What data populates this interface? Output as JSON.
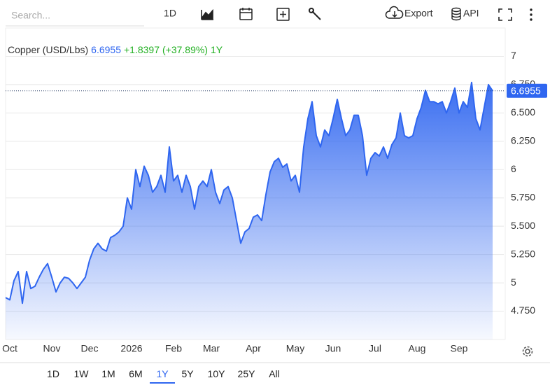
{
  "toolbar": {
    "search_placeholder": "Search...",
    "interval": "1D",
    "export": "Export",
    "api": "API"
  },
  "range_buttons": {
    "labels": [
      "1D",
      "1W",
      "1M",
      "6M",
      "1Y",
      "5Y",
      "10Y",
      "25Y",
      "All"
    ],
    "active_index": 4
  },
  "chart_data": {
    "type": "area",
    "change_label": "+1.8397",
    "change_pct_label": "(+37.89%)",
    "period": "1Y",
    "categories": [
      null,
      "Oct",
      null,
      null,
      null,
      null,
      null,
      null,
      null,
      null,
      null,
      "Nov",
      null,
      null,
      null,
      null,
      null,
      null,
      null,
      null,
      "Dec",
      null,
      null,
      null,
      null,
      null,
      null,
      null,
      null,
      null,
      "2026",
      null,
      null,
      null,
      null,
      null,
      null,
      null,
      null,
      null,
      "Feb",
      null,
      null,
      null,
      null,
      null,
      null,
      null,
      null,
      "Mar",
      null,
      null,
      null,
      null,
      null,
      null,
      null,
      null,
      null,
      "Apr",
      null,
      null,
      null,
      null,
      null,
      null,
      null,
      null,
      null,
      "May",
      null,
      null,
      null,
      null,
      null,
      null,
      null,
      null,
      "Jun",
      null,
      null,
      null,
      null,
      null,
      null,
      null,
      null,
      null,
      "Jul",
      null,
      null,
      null,
      null,
      null,
      null,
      null,
      null,
      null,
      "Aug",
      null,
      null,
      null,
      null,
      null,
      null,
      null,
      null,
      null,
      "Sep",
      null,
      null,
      null,
      null,
      null,
      null,
      null,
      null
    ],
    "series": [
      {
        "name": "Copper (USD/Lbs)",
        "color": "#2f66f0",
        "values": [
          4.87,
          4.85,
          5.02,
          5.1,
          4.82,
          5.1,
          4.95,
          4.97,
          5.05,
          5.12,
          5.17,
          5.05,
          4.92,
          5.0,
          5.05,
          5.04,
          5.0,
          4.95,
          5.0,
          5.05,
          5.2,
          5.3,
          5.35,
          5.3,
          5.28,
          5.4,
          5.42,
          5.45,
          5.5,
          5.75,
          5.65,
          6.0,
          5.85,
          6.03,
          5.95,
          5.8,
          5.85,
          5.95,
          5.8,
          6.2,
          5.9,
          5.95,
          5.8,
          5.95,
          5.85,
          5.65,
          5.85,
          5.9,
          5.85,
          6.0,
          5.8,
          5.7,
          5.82,
          5.85,
          5.75,
          5.55,
          5.35,
          5.45,
          5.48,
          5.58,
          5.6,
          5.55,
          5.78,
          5.98,
          6.07,
          6.1,
          6.02,
          6.05,
          5.9,
          5.95,
          5.8,
          6.2,
          6.45,
          6.6,
          6.3,
          6.2,
          6.35,
          6.3,
          6.45,
          6.62,
          6.45,
          6.3,
          6.35,
          6.48,
          6.48,
          6.3,
          5.95,
          6.1,
          6.15,
          6.12,
          6.2,
          6.1,
          6.22,
          6.28,
          6.5,
          6.3,
          6.28,
          6.3,
          6.45,
          6.55,
          6.7,
          6.6,
          6.6,
          6.58,
          6.6,
          6.5,
          6.6,
          6.72,
          6.5,
          6.6,
          6.55,
          6.77,
          6.45,
          6.35,
          6.55,
          6.75,
          6.6955
        ]
      }
    ],
    "ylim": [
      4.5,
      7.25
    ],
    "yticks": [
      {
        "value": 4.75,
        "label": "4.750"
      },
      5,
      {
        "value": 5.25,
        "label": "5.250"
      },
      {
        "value": 5.5,
        "label": "5.500"
      },
      {
        "value": 5.75,
        "label": "5.750"
      },
      6,
      {
        "value": 6.25,
        "label": "6.250"
      },
      {
        "value": 6.5,
        "label": "6.500"
      },
      {
        "value": 6.75,
        "label": "6.750"
      },
      7
    ],
    "grid": true,
    "last_value_line": true
  }
}
